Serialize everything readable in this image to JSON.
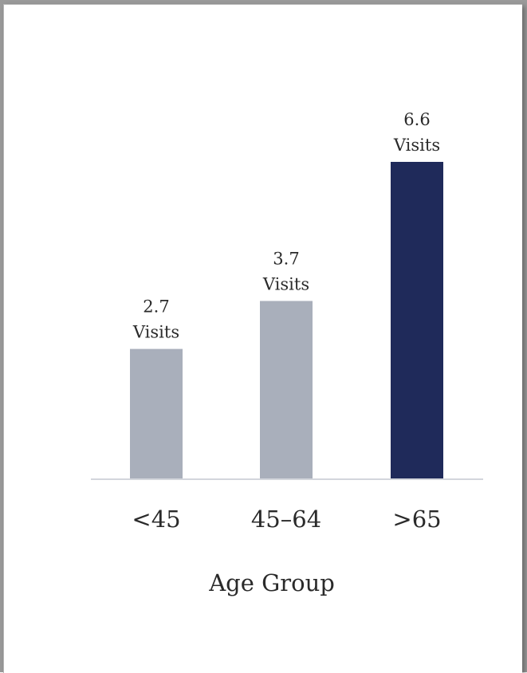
{
  "chart_data": {
    "type": "bar",
    "categories": [
      "<45",
      "45–64",
      ">65"
    ],
    "values": [
      2.7,
      3.7,
      6.6
    ],
    "value_labels": [
      {
        "value": "2.7",
        "unit": "Visits"
      },
      {
        "value": "3.7",
        "unit": "Visits"
      },
      {
        "value": "6.6",
        "unit": "Visits"
      }
    ],
    "xlabel": "Age Group",
    "ylabel": "",
    "title": "",
    "ylim": [
      0,
      6.6
    ],
    "grid": false,
    "legend": "none",
    "colors": [
      "#a9afbb",
      "#a9afbb",
      "#1f2a5a"
    ],
    "axis_color": "#d3d6dc"
  }
}
